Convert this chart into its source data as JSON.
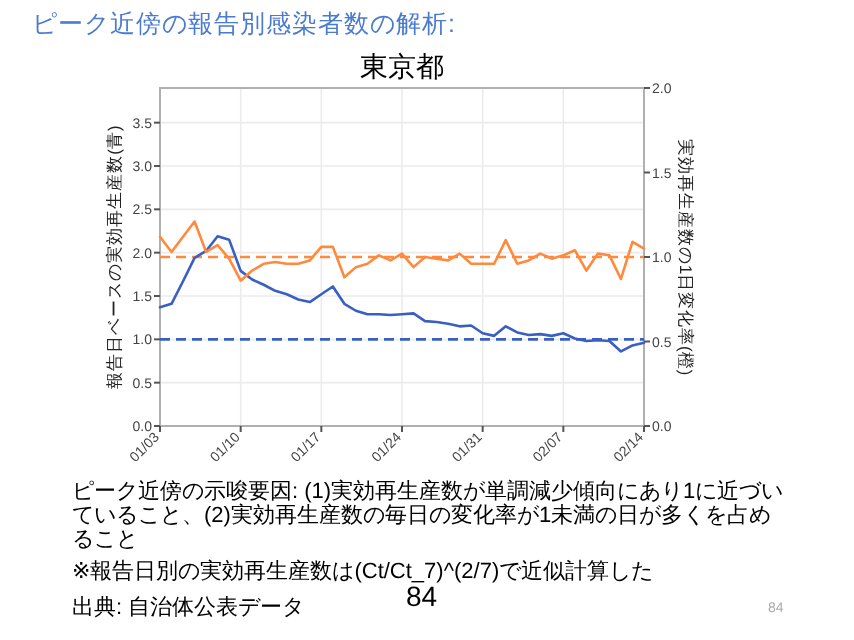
{
  "chart_data": {
    "type": "line",
    "title": "ピーク近傍の報告別感染者数の解析:",
    "subtitle": "東京都",
    "ylabel": "報告日ベースの実効再生産数(青)",
    "y2label": "実効再生産数の1日変化率(橙)",
    "x": [
      "--01-03",
      "--01-04",
      "--01-05",
      "--01-06",
      "--01-07",
      "--01-08",
      "--01-09",
      "--01-10",
      "--01-11",
      "--01-12",
      "--01-13",
      "--01-14",
      "--01-15",
      "--01-16",
      "--01-17",
      "--01-18",
      "--01-19",
      "--01-20",
      "--01-21",
      "--01-22",
      "--01-23",
      "--01-24",
      "--01-25",
      "--01-26",
      "--01-27",
      "--01-28",
      "--01-29",
      "--01-30",
      "--01-31",
      "--02-01",
      "--02-02",
      "--02-03",
      "--02-04",
      "--02-05",
      "--02-06",
      "--02-07",
      "--02-08",
      "--02-09",
      "--02-10",
      "--02-11",
      "--02-12",
      "--02-13",
      "--02-14"
    ],
    "series": [
      {
        "color": "#3a5fc2",
        "values": [
          1.37,
          1.41,
          1.67,
          1.94,
          2.02,
          2.19,
          2.15,
          1.79,
          1.69,
          1.63,
          1.56,
          1.52,
          1.46,
          1.43,
          1.52,
          1.61,
          1.41,
          1.33,
          1.29,
          1.29,
          1.28,
          1.29,
          1.3,
          1.21,
          1.2,
          1.18,
          1.15,
          1.16,
          1.07,
          1.04,
          1.15,
          1.08,
          1.05,
          1.06,
          1.04,
          1.07,
          1.01,
          0.98,
          0.99,
          0.98,
          0.86,
          0.93,
          0.96
        ]
      },
      {
        "color": "#ff8a3d",
        "axis": "y2",
        "values": [
          1.12,
          1.03,
          1.12,
          1.21,
          1.03,
          1.07,
          0.99,
          0.86,
          0.92,
          0.96,
          0.97,
          0.96,
          0.96,
          0.98,
          1.06,
          1.06,
          0.88,
          0.94,
          0.96,
          1.01,
          0.98,
          1.02,
          0.94,
          1.0,
          0.99,
          0.98,
          1.02,
          0.96,
          0.96,
          0.96,
          1.1,
          0.96,
          0.98,
          1.02,
          0.99,
          1.01,
          1.04,
          0.92,
          1.02,
          1.01,
          0.87,
          1.09,
          1.05
        ]
      }
    ],
    "xlim": [
      "--01-03",
      "--02-14"
    ],
    "xticks": [
      {
        "value": "--01-03",
        "label": "01/03"
      },
      {
        "value": "--01-10",
        "label": "01/10"
      },
      {
        "value": "--01-17",
        "label": "01/17"
      },
      {
        "value": "--01-24",
        "label": "01/24"
      },
      {
        "value": "--01-31",
        "label": "01/31"
      },
      {
        "value": "--02-07",
        "label": "02/07"
      },
      {
        "value": "--02-14",
        "label": "02/14"
      }
    ],
    "ylim": [
      0,
      3.9
    ],
    "yticks": [
      {
        "value": 0,
        "label": "0.0"
      },
      {
        "value": 0.5,
        "label": "0.5"
      },
      {
        "value": 1,
        "label": "1.0"
      },
      {
        "value": 1.5,
        "label": "1.5"
      },
      {
        "value": 2,
        "label": "2.0"
      },
      {
        "value": 2.5,
        "label": "2.5"
      },
      {
        "value": 3,
        "label": "3.0"
      },
      {
        "value": 3.5,
        "label": "3.5"
      }
    ],
    "y2lim": [
      0,
      2
    ],
    "y2ticks": [
      {
        "value": 0,
        "label": "0.0"
      },
      {
        "value": 0.5,
        "label": "0.5"
      },
      {
        "value": 1,
        "label": "1.0"
      },
      {
        "value": 1.5,
        "label": "1.5"
      },
      {
        "value": 2,
        "label": "2.0"
      }
    ],
    "ref_lines": [
      {
        "axis": "y",
        "value": 1,
        "color": "#3a5fc2",
        "line_style": "dashed"
      },
      {
        "axis": "y2",
        "value": 1,
        "color": "#ff8a3d",
        "line_style": "dashed"
      }
    ],
    "grid": true,
    "legend": false,
    "marker": "none",
    "line_style": "solid",
    "annotations": [
      "ピーク近傍の示唆要因: (1)実効再生産数が単調減少傾向にあり1に近づいていること、(2)実効再生産数の毎日の変化率が1未満の日が多くを占めること",
      "※報告日別の実効再生産数は(Ct/Ct_7)^(2/7)で近似計算した",
      "出典: 自治体公表データ",
      "84",
      "84"
    ]
  }
}
